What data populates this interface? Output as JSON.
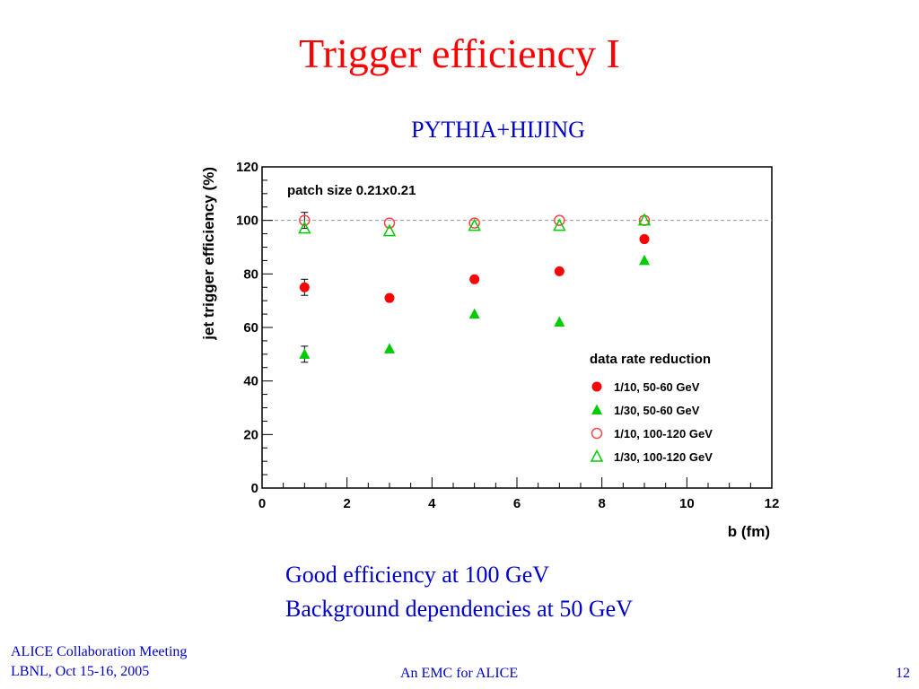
{
  "slide": {
    "title": "Trigger efficiency I",
    "subtitle": "PYTHIA+HIJING",
    "summary": [
      "Good efficiency at 100 GeV",
      "Background dependencies at 50 GeV"
    ],
    "footer": {
      "left_line1": "ALICE Collaboration Meeting",
      "left_line2": "LBNL, Oct 15-16, 2005",
      "center": "An EMC for ALICE",
      "page_number": "12"
    }
  },
  "chart_data": {
    "type": "scatter",
    "title": "patch size 0.21x0.21",
    "xlabel": "b (fm)",
    "ylabel": "jet trigger efficiency (%)",
    "xlim": [
      0,
      12
    ],
    "ylim": [
      0,
      120
    ],
    "xticks": [
      0,
      2,
      4,
      6,
      8,
      10,
      12
    ],
    "yticks": [
      0,
      20,
      40,
      60,
      80,
      100,
      120
    ],
    "reference_line": {
      "y": 100,
      "style": "dashed",
      "color": "#999999"
    },
    "legend": {
      "title": "data rate reduction",
      "placement": "bottom-right"
    },
    "series": [
      {
        "name": "1/10, 50-60 GeV",
        "marker": "filled-circle",
        "color": "#ff0000",
        "x": [
          1,
          3,
          5,
          7,
          9
        ],
        "y": [
          75,
          71,
          78,
          81,
          93
        ],
        "yerr": [
          3,
          0,
          0,
          0,
          0
        ]
      },
      {
        "name": "1/30, 50-60 GeV",
        "marker": "filled-triangle",
        "color": "#00cc00",
        "x": [
          1,
          3,
          5,
          7,
          9
        ],
        "y": [
          50,
          52,
          65,
          62,
          85
        ],
        "yerr": [
          3,
          0,
          0,
          0,
          0
        ]
      },
      {
        "name": "1/10, 100-120 GeV",
        "marker": "open-circle",
        "color": "#ff4444",
        "x": [
          1,
          3,
          5,
          7,
          9
        ],
        "y": [
          100,
          99,
          99,
          100,
          100
        ],
        "yerr": [
          3,
          0,
          0,
          0,
          0
        ]
      },
      {
        "name": "1/30, 100-120 GeV",
        "marker": "open-triangle",
        "color": "#00cc00",
        "x": [
          1,
          3,
          5,
          7,
          9
        ],
        "y": [
          97,
          96,
          98,
          98,
          100
        ],
        "yerr": [
          0,
          0,
          0,
          0,
          0
        ]
      }
    ]
  }
}
